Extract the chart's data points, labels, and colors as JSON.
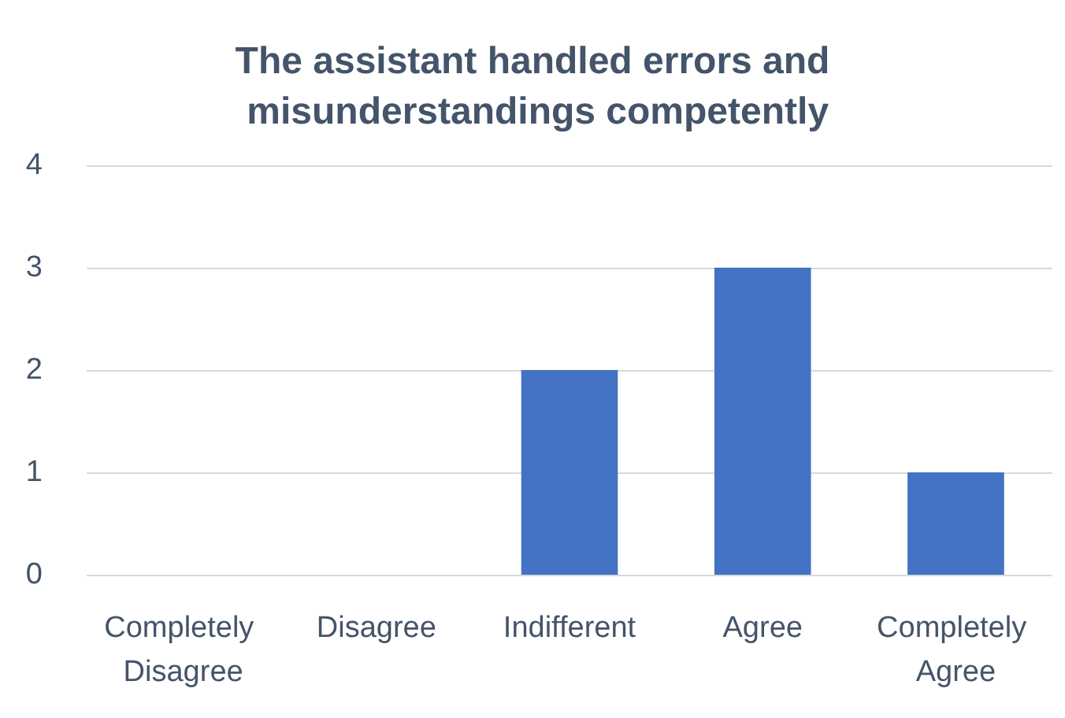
{
  "chart_data": {
    "type": "bar",
    "title": "The assistant handled errors and misunderstandings competently",
    "categories": [
      "Completely Disagree",
      "Disagree",
      "Indifferent",
      "Agree",
      "Completely Agree"
    ],
    "values": [
      0,
      0,
      2,
      3,
      1
    ],
    "color": "#4472c4",
    "ylim": [
      0,
      4
    ],
    "yticks": [
      0,
      1,
      2,
      3,
      4
    ],
    "grid": "y"
  }
}
